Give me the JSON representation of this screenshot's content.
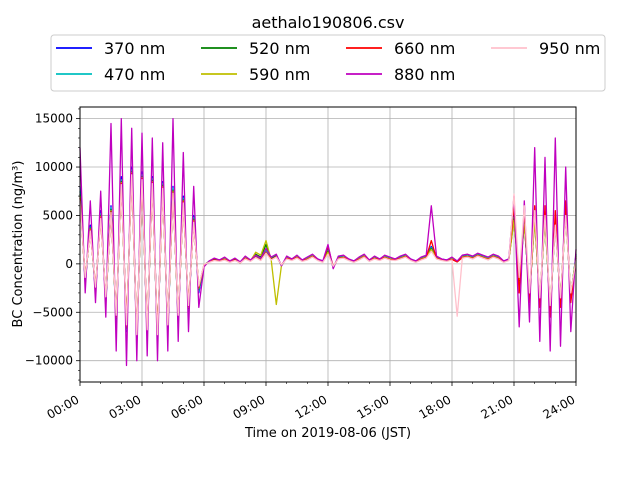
{
  "chart_data": {
    "type": "line",
    "title": "aethalo190806.csv",
    "xlabel": "Time on 2019-08-06 (JST)",
    "ylabel": "BC Concentration (ng/m³)",
    "xlim": [
      "00:00",
      "24:00"
    ],
    "ylim": [
      -12200,
      16200
    ],
    "grid": true,
    "legend_position": "top",
    "x_ticks": [
      "00:00",
      "03:00",
      "06:00",
      "09:00",
      "12:00",
      "15:00",
      "18:00",
      "21:00",
      "24:00"
    ],
    "y_ticks": [
      15000,
      10000,
      5000,
      0,
      -5000,
      -10000
    ],
    "y_tick_labels": [
      "15000",
      "10000",
      "5000",
      "0",
      "−5000",
      "−10000"
    ],
    "x": [
      "00:00",
      "00:15",
      "00:30",
      "00:45",
      "01:00",
      "01:15",
      "01:30",
      "01:45",
      "02:00",
      "02:15",
      "02:30",
      "02:45",
      "03:00",
      "03:15",
      "03:30",
      "03:45",
      "04:00",
      "04:15",
      "04:30",
      "04:45",
      "05:00",
      "05:15",
      "05:30",
      "05:45",
      "06:00",
      "06:15",
      "06:30",
      "06:45",
      "07:00",
      "07:15",
      "07:30",
      "07:45",
      "08:00",
      "08:15",
      "08:30",
      "08:45",
      "09:00",
      "09:15",
      "09:30",
      "09:45",
      "10:00",
      "10:15",
      "10:30",
      "10:45",
      "11:00",
      "11:15",
      "11:30",
      "11:45",
      "12:00",
      "12:15",
      "12:30",
      "12:45",
      "13:00",
      "13:15",
      "13:30",
      "13:45",
      "14:00",
      "14:15",
      "14:30",
      "14:45",
      "15:00",
      "15:15",
      "15:30",
      "15:45",
      "16:00",
      "16:15",
      "16:30",
      "16:45",
      "17:00",
      "17:15",
      "17:30",
      "17:45",
      "18:00",
      "18:15",
      "18:30",
      "18:45",
      "19:00",
      "19:15",
      "19:30",
      "19:45",
      "20:00",
      "20:15",
      "20:30",
      "20:45",
      "21:00",
      "21:15",
      "21:30",
      "21:45",
      "22:00",
      "22:15",
      "22:30",
      "22:45",
      "23:00",
      "23:15",
      "23:30",
      "23:45",
      "24:00"
    ],
    "series": [
      {
        "name": "370 nm",
        "color": "#0000ff",
        "values": [
          8000,
          -2000,
          4000,
          -3000,
          5500,
          -4000,
          6000,
          -6000,
          9000,
          -7000,
          10000,
          -8000,
          9500,
          -7500,
          9000,
          -8000,
          8500,
          -7000,
          8000,
          -6000,
          7000,
          -5000,
          5000,
          -3000,
          -200,
          300,
          500,
          400,
          600,
          300,
          500,
          200,
          700,
          400,
          800,
          500,
          1500,
          600,
          900,
          -200,
          700,
          500,
          800,
          400,
          600,
          900,
          500,
          300,
          1500,
          -400,
          700,
          800,
          500,
          300,
          600,
          900,
          400,
          700,
          500,
          800,
          600,
          500,
          700,
          900,
          500,
          300,
          600,
          800,
          1800,
          700,
          500,
          400,
          600,
          300,
          800,
          900,
          700,
          1000,
          800,
          600,
          900,
          700,
          300,
          500,
          5000,
          -2000,
          4500,
          -3500,
          5000,
          -4000,
          5000,
          -5000,
          4500,
          -4000,
          5500,
          -3500,
          1000
        ]
      },
      {
        "name": "470 nm",
        "color": "#00bfbf",
        "values": [
          7500,
          -1800,
          3800,
          -2800,
          5200,
          -3800,
          5800,
          -5800,
          8700,
          -6800,
          9700,
          -7800,
          9200,
          -7300,
          8800,
          -7800,
          8300,
          -6800,
          7800,
          -5800,
          6800,
          -4800,
          4800,
          -2800,
          -150,
          250,
          450,
          350,
          550,
          250,
          450,
          150,
          650,
          350,
          750,
          450,
          1400,
          550,
          850,
          -150,
          650,
          450,
          750,
          350,
          550,
          850,
          450,
          250,
          1400,
          -350,
          650,
          750,
          450,
          250,
          550,
          850,
          350,
          650,
          450,
          750,
          550,
          450,
          650,
          850,
          450,
          250,
          550,
          750,
          1700,
          650,
          450,
          350,
          550,
          250,
          750,
          850,
          650,
          950,
          750,
          550,
          850,
          650,
          250,
          450,
          4800,
          -1800,
          4300,
          -3300,
          4800,
          -3800,
          4800,
          -4800,
          4300,
          -3800,
          5300,
          -3300,
          900
        ]
      },
      {
        "name": "520 nm",
        "color": "#008000",
        "values": [
          7200,
          -1700,
          3700,
          -2700,
          5000,
          -3700,
          5600,
          -5600,
          8500,
          -6600,
          9500,
          -7600,
          9000,
          -7100,
          8600,
          -7600,
          8100,
          -6600,
          7600,
          -5600,
          6600,
          -4600,
          4600,
          -2600,
          -100,
          250,
          450,
          300,
          500,
          250,
          450,
          150,
          600,
          350,
          1000,
          700,
          2000,
          500,
          800,
          -150,
          600,
          450,
          700,
          350,
          500,
          800,
          450,
          250,
          1300,
          -300,
          600,
          700,
          450,
          250,
          500,
          800,
          350,
          600,
          450,
          700,
          500,
          450,
          600,
          800,
          450,
          250,
          500,
          700,
          1600,
          600,
          450,
          350,
          500,
          250,
          700,
          800,
          600,
          900,
          700,
          500,
          800,
          600,
          250,
          450,
          4600,
          -1700,
          4200,
          -3200,
          4600,
          -3700,
          4600,
          -4600,
          4200,
          -3700,
          5100,
          -3200,
          800
        ]
      },
      {
        "name": "590 nm",
        "color": "#bfbf00",
        "values": [
          7000,
          -1600,
          3600,
          -2600,
          4900,
          -3600,
          5500,
          -5500,
          8400,
          -6500,
          9400,
          -7500,
          8900,
          -7000,
          8500,
          -7500,
          8000,
          -6500,
          7500,
          -5500,
          6500,
          -4500,
          4500,
          -2500,
          -100,
          200,
          400,
          300,
          500,
          200,
          400,
          100,
          600,
          300,
          1200,
          900,
          2400,
          400,
          -4200,
          -150,
          600,
          400,
          700,
          300,
          500,
          800,
          400,
          200,
          1200,
          -300,
          600,
          700,
          400,
          200,
          500,
          800,
          300,
          600,
          400,
          700,
          500,
          400,
          600,
          800,
          400,
          200,
          500,
          700,
          1500,
          600,
          400,
          300,
          500,
          200,
          700,
          800,
          600,
          900,
          700,
          500,
          800,
          600,
          200,
          400,
          4500,
          -1600,
          4100,
          -3100,
          4500,
          -3600,
          4500,
          -4500,
          4100,
          -3600,
          5000,
          -3100,
          700
        ]
      },
      {
        "name": "660 nm",
        "color": "#ff0000",
        "values": [
          6800,
          -1500,
          3500,
          -2500,
          4800,
          -3500,
          5400,
          -5400,
          8300,
          -6400,
          9300,
          -7400,
          8800,
          -6900,
          8400,
          -7400,
          7900,
          -6400,
          7400,
          -5400,
          6400,
          -4400,
          4400,
          -2400,
          -100,
          200,
          400,
          300,
          450,
          200,
          400,
          100,
          550,
          300,
          700,
          400,
          1200,
          450,
          750,
          -100,
          550,
          400,
          650,
          300,
          450,
          750,
          400,
          200,
          1800,
          -300,
          550,
          650,
          400,
          200,
          450,
          750,
          300,
          550,
          400,
          650,
          450,
          400,
          550,
          750,
          400,
          200,
          450,
          650,
          2400,
          550,
          400,
          300,
          450,
          200,
          650,
          750,
          550,
          850,
          650,
          450,
          750,
          550,
          200,
          400,
          6000,
          -3000,
          5500,
          -4000,
          6000,
          -4500,
          6000,
          -5500,
          5500,
          -4500,
          6500,
          -4000,
          600
        ]
      },
      {
        "name": "880 nm",
        "color": "#bf00bf",
        "values": [
          12000,
          -3000,
          6500,
          -4000,
          7500,
          -5500,
          14500,
          -9000,
          15000,
          -10500,
          14000,
          -10000,
          13500,
          -9500,
          13000,
          -10000,
          12500,
          -9000,
          15000,
          -8000,
          11500,
          -7000,
          8000,
          -4500,
          -300,
          300,
          600,
          400,
          700,
          300,
          600,
          200,
          800,
          400,
          900,
          600,
          1600,
          700,
          1000,
          -200,
          800,
          500,
          900,
          400,
          700,
          1000,
          500,
          300,
          2000,
          -500,
          800,
          900,
          500,
          300,
          700,
          1000,
          400,
          800,
          500,
          900,
          700,
          500,
          800,
          1000,
          500,
          300,
          700,
          900,
          6000,
          800,
          500,
          400,
          700,
          300,
          900,
          1000,
          800,
          1100,
          900,
          700,
          1000,
          800,
          300,
          500,
          7000,
          -6500,
          6500,
          -6000,
          12000,
          -8000,
          11000,
          -9000,
          13000,
          -8500,
          10000,
          -7000,
          1500
        ]
      },
      {
        "name": "950 nm",
        "color": "#ffc0cb",
        "values": [
          6500,
          -1400,
          3400,
          -2400,
          4700,
          -3400,
          5300,
          -5300,
          8200,
          -6300,
          9200,
          -7300,
          8700,
          -6800,
          8300,
          -7300,
          7800,
          -6300,
          7300,
          -5300,
          6300,
          -4300,
          4300,
          -2300,
          -50,
          150,
          350,
          250,
          400,
          150,
          350,
          100,
          500,
          250,
          650,
          350,
          1100,
          400,
          700,
          -100,
          500,
          350,
          600,
          250,
          400,
          700,
          350,
          150,
          1000,
          -250,
          500,
          600,
          350,
          150,
          400,
          700,
          250,
          500,
          350,
          600,
          400,
          350,
          500,
          700,
          350,
          150,
          400,
          600,
          1300,
          500,
          350,
          250,
          400,
          -5400,
          600,
          700,
          500,
          800,
          600,
          400,
          700,
          500,
          150,
          350,
          7200,
          -1400,
          6000,
          -3000,
          5500,
          -3500,
          5000,
          -4300,
          4000,
          -3500,
          5000,
          -3000,
          400
        ]
      }
    ]
  }
}
